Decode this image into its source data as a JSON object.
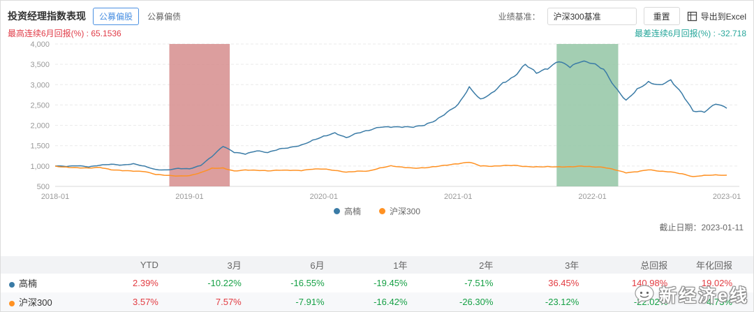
{
  "header": {
    "title": "投资经理指数表现",
    "toggle_active": "公募偏股",
    "toggle_inactive": "公募偏债",
    "benchmark_label": "业绩基准：",
    "benchmark_value": "沪深300基准",
    "reset_label": "重置",
    "export_label": "导出到Excel"
  },
  "stats": {
    "best": "最高连续6月回报(%) : 65.1536",
    "worst": "最差连续6月回报(%) : -32.718"
  },
  "chart_data": {
    "type": "line",
    "months": 61,
    "ylim": [
      500,
      4000
    ],
    "y_ticks": [
      "500",
      "1,000",
      "1,500",
      "2,000",
      "2,500",
      "3,000",
      "3,500",
      "4,000"
    ],
    "y_tick_values": [
      500,
      1000,
      1500,
      2000,
      2500,
      3000,
      3500,
      4000
    ],
    "x_tick_labels": [
      "2018-01",
      "2019-01",
      "2020-01",
      "2021-01",
      "2022-01",
      "2023-01"
    ],
    "x_tick_month_index": [
      0,
      12,
      24,
      36,
      48,
      60
    ],
    "bands": [
      {
        "name": "best-6m-window",
        "from": 10.2,
        "to": 15.6,
        "color": "#d68d8d"
      },
      {
        "name": "worst-6m-window",
        "from": 44.8,
        "to": 50.3,
        "color": "#93c6a5"
      }
    ],
    "series": [
      {
        "name": "高楠",
        "color": "#3a7ba6",
        "values": [
          1000,
          985,
          1005,
          975,
          1020,
          1045,
          1025,
          1060,
          1000,
          915,
          905,
          945,
          930,
          1010,
          1230,
          1480,
          1330,
          1290,
          1370,
          1330,
          1420,
          1460,
          1520,
          1640,
          1740,
          1820,
          1700,
          1810,
          1870,
          1950,
          1950,
          1950,
          1950,
          2000,
          2120,
          2320,
          2520,
          2950,
          2650,
          2800,
          3050,
          3200,
          3500,
          3280,
          3380,
          3560,
          3420,
          3560,
          3520,
          3380,
          2950,
          2620,
          2900,
          3080,
          3000,
          3120,
          2780,
          2350,
          2320,
          2520,
          2420
        ]
      },
      {
        "name": "沪深300",
        "color": "#ff9122",
        "values": [
          1000,
          975,
          960,
          950,
          965,
          905,
          885,
          870,
          860,
          790,
          770,
          755,
          765,
          840,
          950,
          955,
          880,
          905,
          895,
          880,
          895,
          890,
          885,
          920,
          925,
          890,
          850,
          875,
          880,
          955,
          1010,
          975,
          950,
          955,
          985,
          1020,
          1050,
          1090,
          1000,
          990,
          1010,
          1020,
          990,
          985,
          990,
          985,
          985,
          1000,
          980,
          965,
          905,
          830,
          855,
          905,
          870,
          855,
          810,
          740,
          775,
          785,
          775
        ]
      }
    ]
  },
  "as_of": "截止日期：2023-01-11",
  "table": {
    "headers": [
      "",
      "YTD",
      "3月",
      "6月",
      "1年",
      "2年",
      "3年",
      "总回报",
      "年化回报"
    ],
    "positive_color": "#e23b41",
    "negative_color": "#16a045",
    "rows": [
      {
        "name": "高楠",
        "dot_color": "#3a7ba6",
        "values": [
          "2.39%",
          "-10.22%",
          "-16.55%",
          "-19.45%",
          "-7.51%",
          "36.45%",
          "140.98%",
          "19.02%"
        ]
      },
      {
        "name": "沪深300",
        "dot_color": "#ff9122",
        "values": [
          "3.57%",
          "7.57%",
          "-7.91%",
          "-16.42%",
          "-26.30%",
          "-23.12%",
          "-22.02%",
          "-4.73%"
        ]
      }
    ]
  },
  "watermark": {
    "text": "新经济e线"
  }
}
